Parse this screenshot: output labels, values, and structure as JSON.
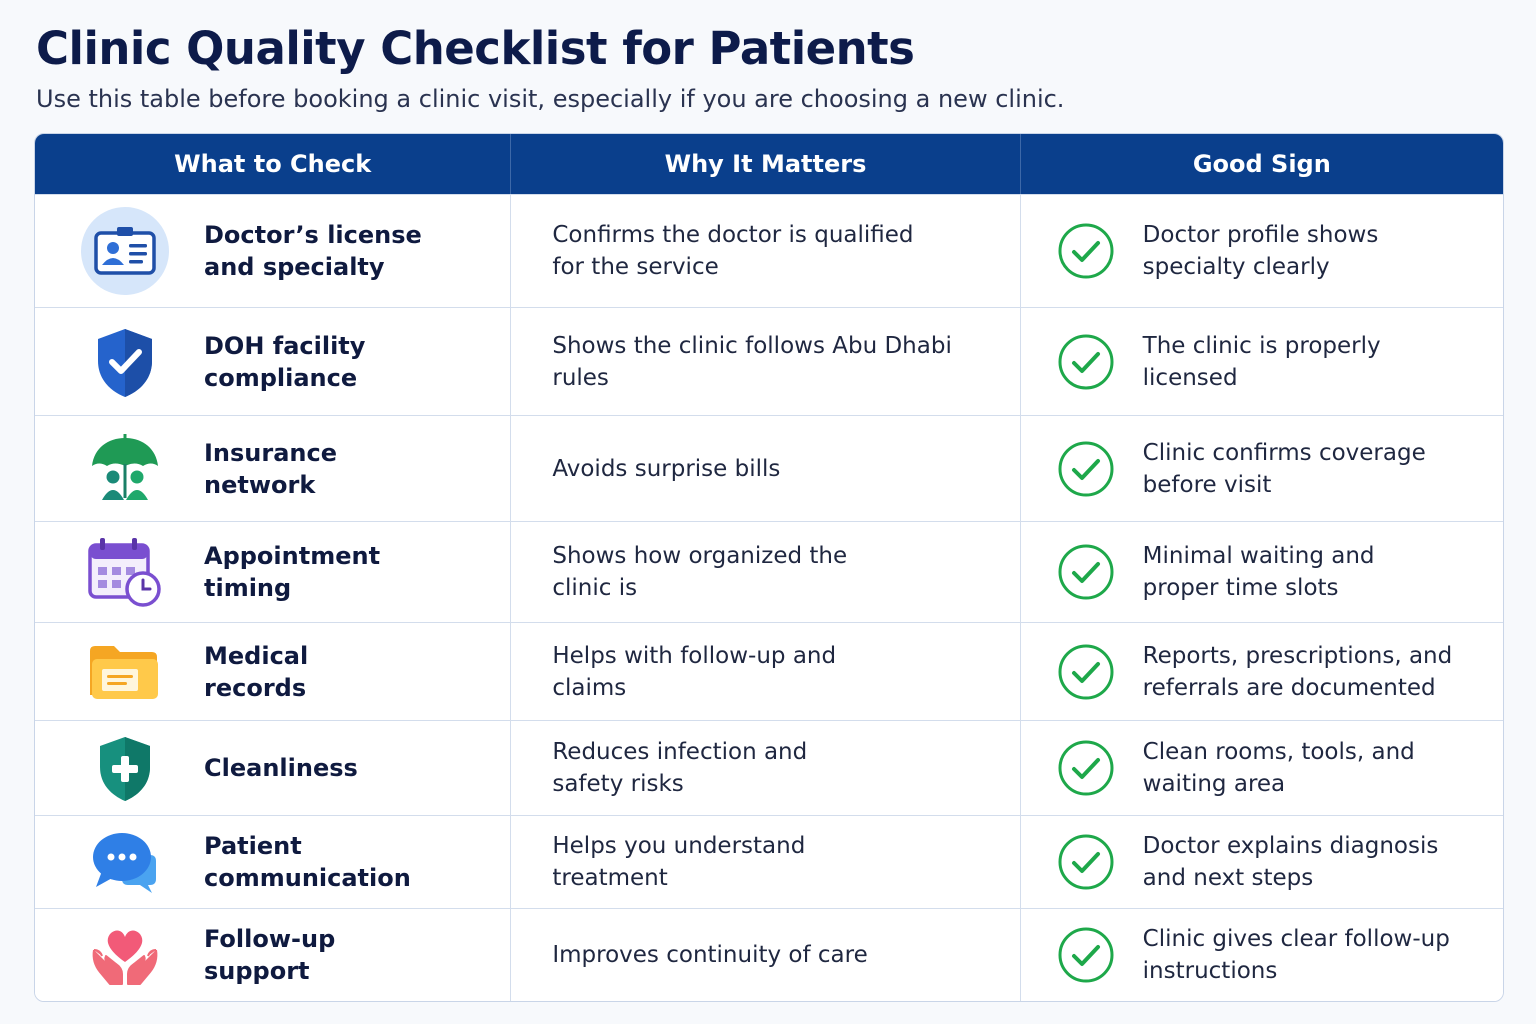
{
  "header": {
    "title": "Clinic Quality Checklist for Patients",
    "subtitle": "Use this table before booking a clinic visit, especially if you are choosing a new clinic."
  },
  "table": {
    "columns": [
      "What to Check",
      "Why It Matters",
      "Good Sign"
    ],
    "rows": [
      {
        "icon": "id-card-icon",
        "check": "Doctor’s license\nand specialty",
        "why": "Confirms the doctor is qualified\nfor the service",
        "good": "Doctor profile shows\nspecialty clearly"
      },
      {
        "icon": "shield-check-icon",
        "check": "DOH facility\ncompliance",
        "why": "Shows the clinic follows Abu Dhabi\nrules",
        "good": "The clinic is properly\nlicensed"
      },
      {
        "icon": "umbrella-people-icon",
        "check": "Insurance\nnetwork",
        "why": "Avoids surprise bills",
        "good": "Clinic confirms coverage\nbefore visit"
      },
      {
        "icon": "calendar-clock-icon",
        "check": "Appointment\ntiming",
        "why": "Shows how organized the\nclinic is",
        "good": "Minimal waiting and\nproper time slots"
      },
      {
        "icon": "folder-icon",
        "check": "Medical\nrecords",
        "why": "Helps with follow-up and\nclaims",
        "good": "Reports, prescriptions, and\nreferrals are documented"
      },
      {
        "icon": "medical-shield-icon",
        "check": "Cleanliness",
        "why": "Reduces infection and\nsafety risks",
        "good": "Clean rooms, tools, and\nwaiting area"
      },
      {
        "icon": "chat-bubbles-icon",
        "check": "Patient\ncommunication",
        "why": "Helps you understand\ntreatment",
        "good": "Doctor explains diagnosis\nand next steps"
      },
      {
        "icon": "heart-hands-icon",
        "check": "Follow-up\nsupport",
        "why": "Improves continuity of care",
        "good": "Clinic gives clear follow-up\ninstructions"
      }
    ]
  },
  "colors": {
    "header_bg": "#0a3f8c",
    "check_green": "#1ea84a",
    "title": "#0d1b4a"
  }
}
